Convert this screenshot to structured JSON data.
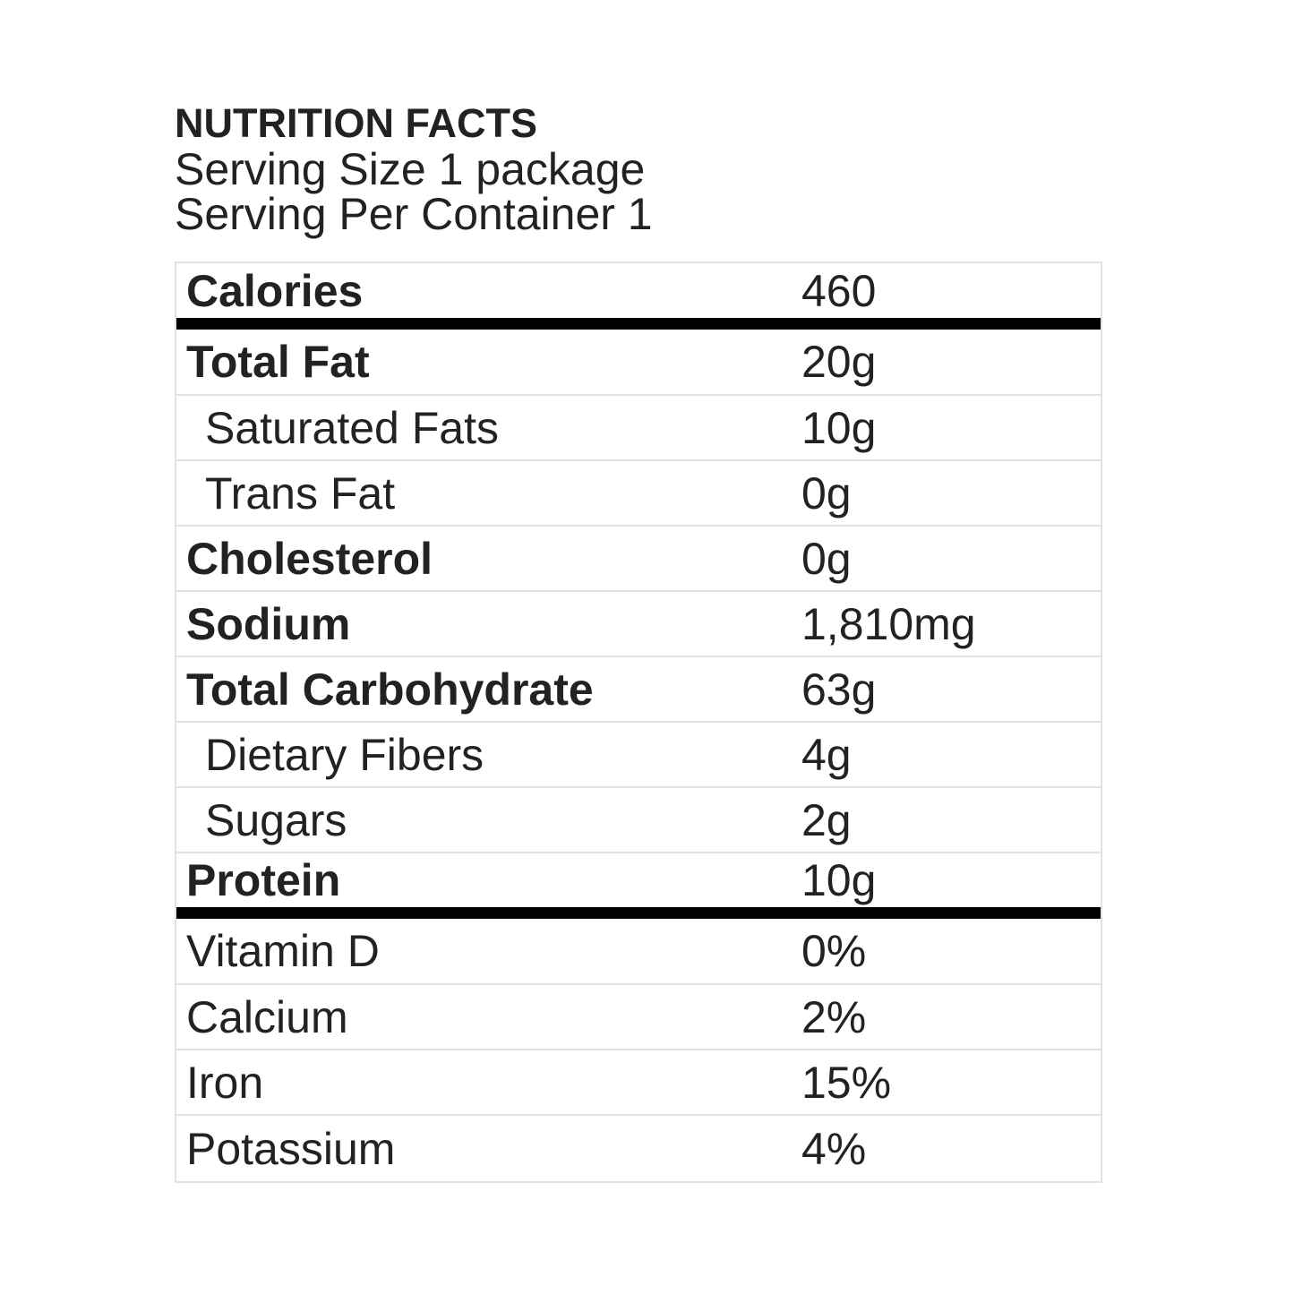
{
  "header": {
    "title": "NUTRITION FACTS",
    "serving_size": "Serving Size 1 package",
    "servings_per_container": "Serving Per Container 1"
  },
  "calories": {
    "label": "Calories",
    "value": "460"
  },
  "nutrients": [
    {
      "label": "Total Fat",
      "value": "20g"
    },
    {
      "label": "Saturated Fats",
      "value": "10g"
    },
    {
      "label": "Trans Fat",
      "value": "0g"
    },
    {
      "label": "Cholesterol",
      "value": "0g"
    },
    {
      "label": "Sodium",
      "value": "1,810mg"
    },
    {
      "label": "Total Carbohydrate",
      "value": "63g"
    },
    {
      "label": "Dietary Fibers",
      "value": "4g"
    },
    {
      "label": "Sugars",
      "value": "2g"
    },
    {
      "label": "Protein",
      "value": "10g"
    }
  ],
  "vitamins": [
    {
      "label": "Vitamin D",
      "value": "0%"
    },
    {
      "label": "Calcium",
      "value": "2%"
    },
    {
      "label": "Iron",
      "value": "15%"
    },
    {
      "label": "Potassium",
      "value": "4%"
    }
  ],
  "colors": {
    "text": "#222222",
    "divider": "#000000",
    "grid": "#e2e2e2"
  }
}
